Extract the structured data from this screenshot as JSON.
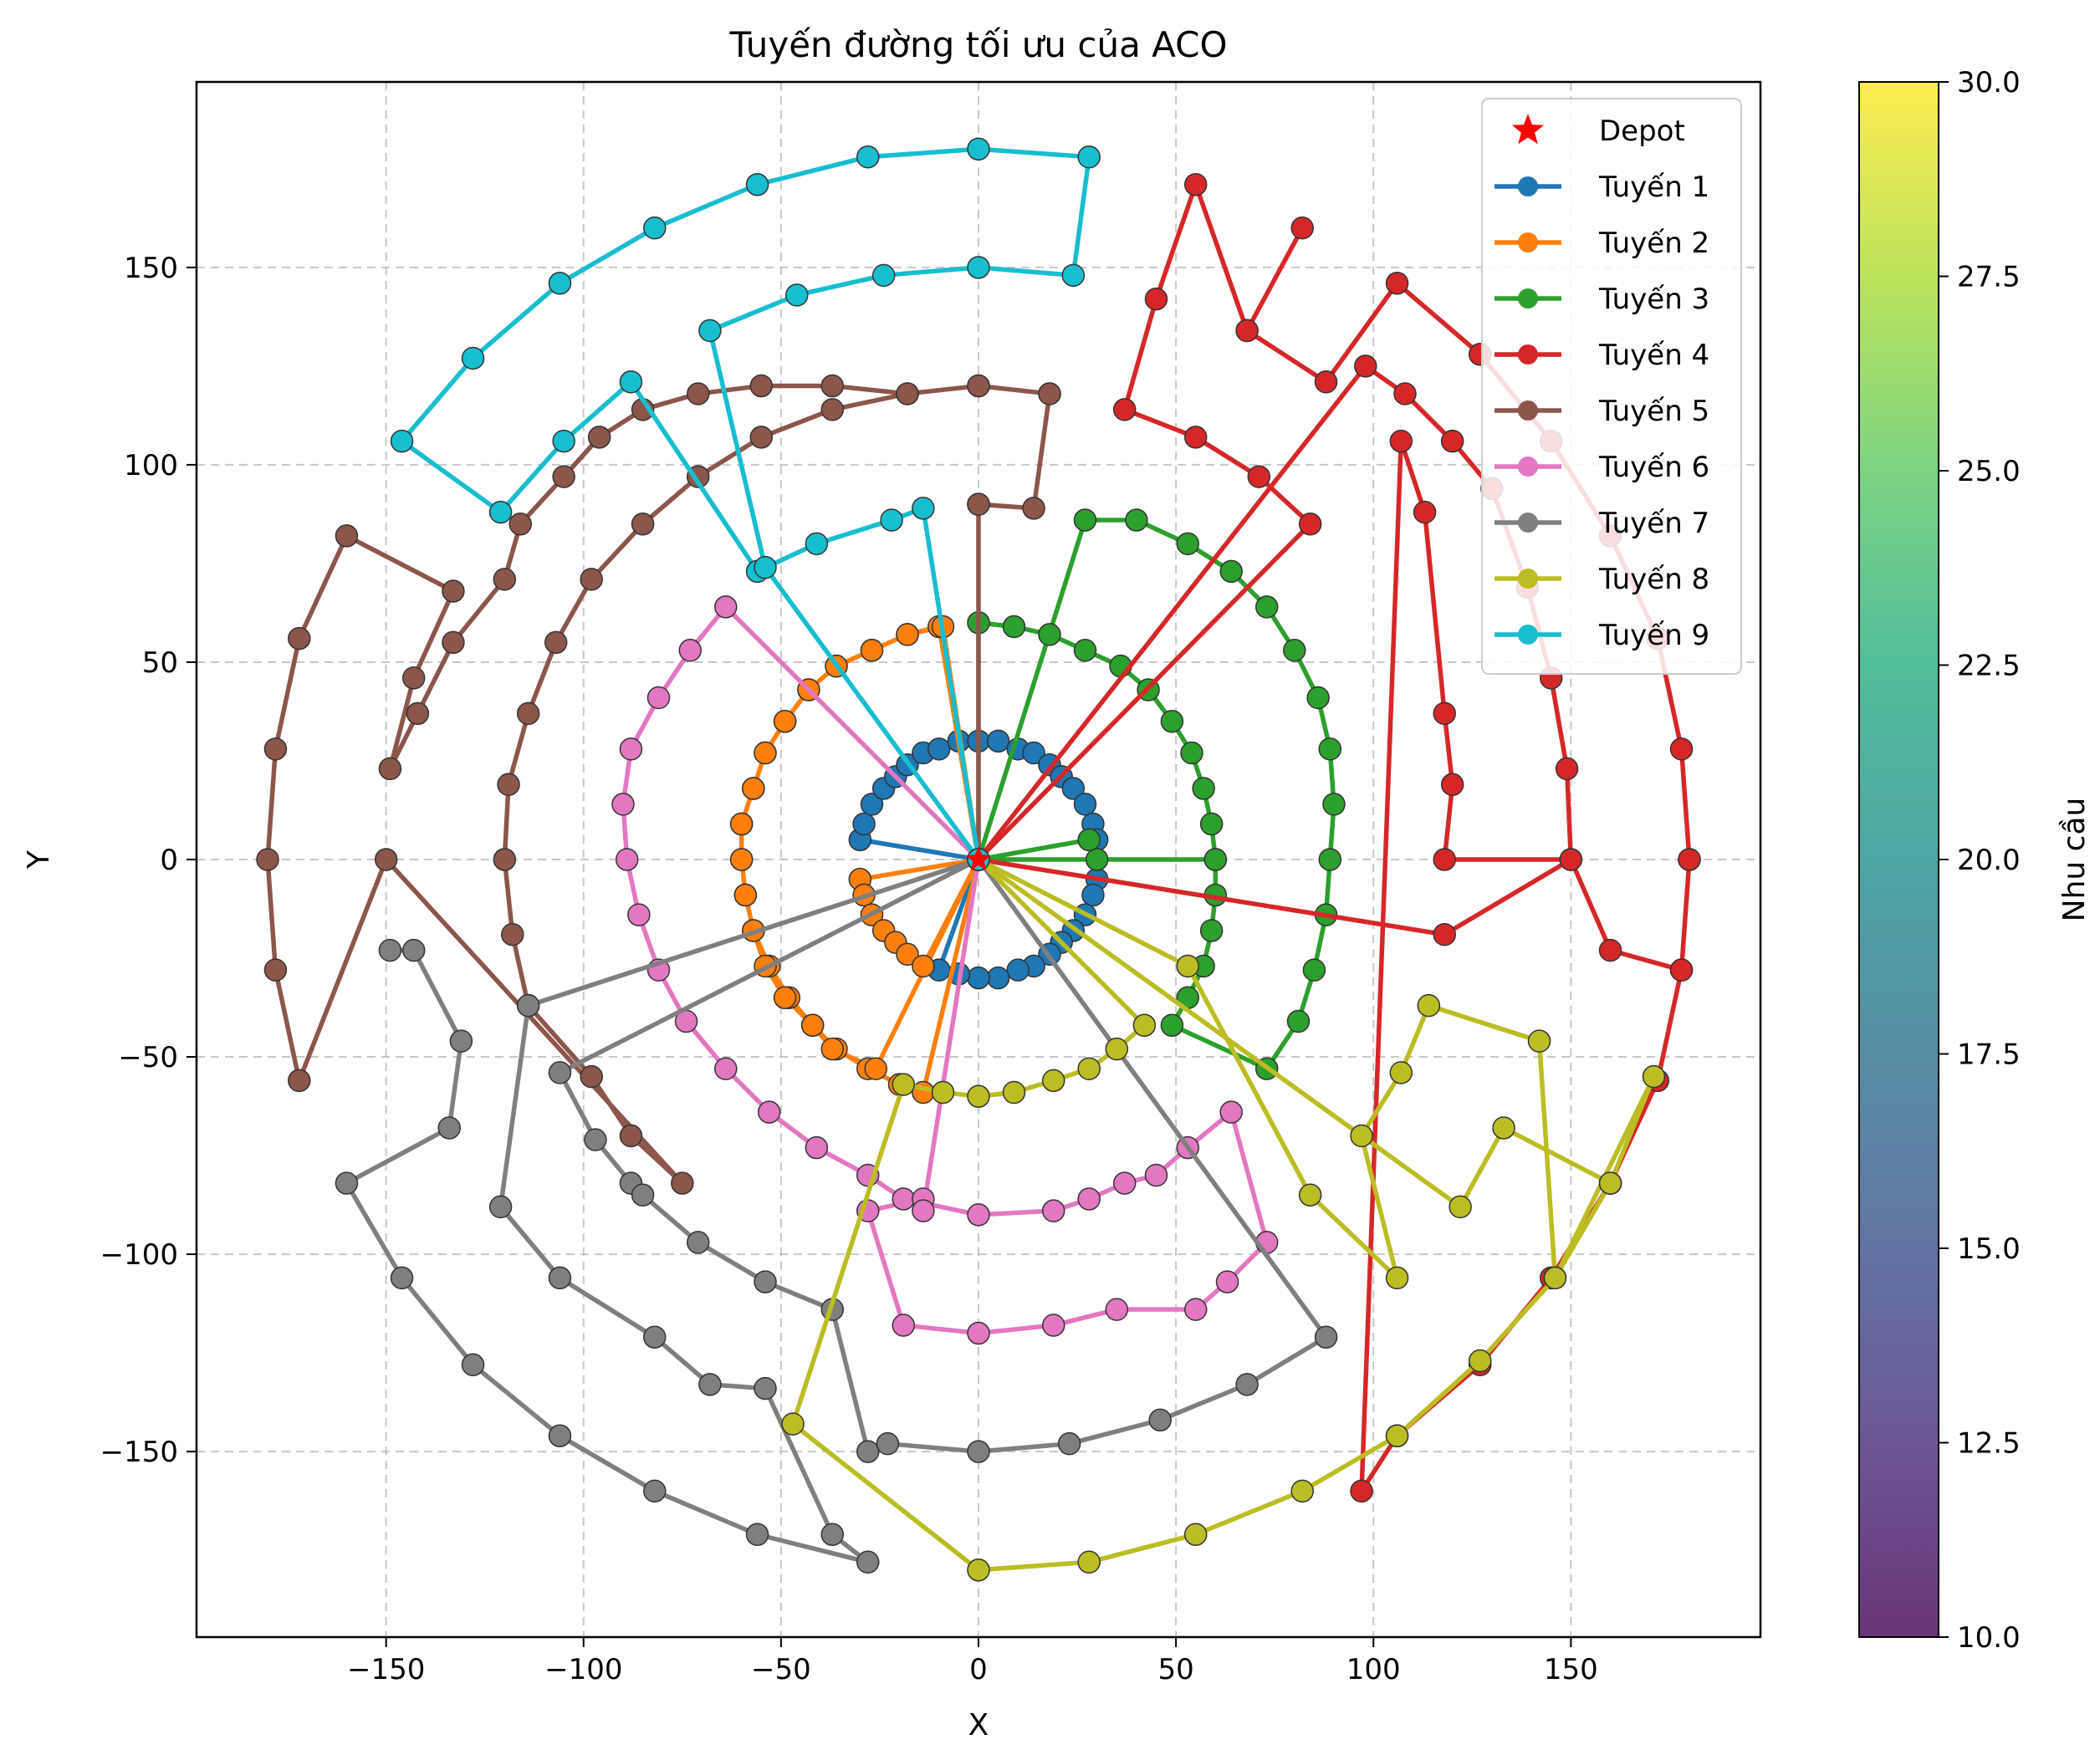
{
  "chart_data": {
    "type": "scatter",
    "title": "Tuyến đường tối ưu của ACO",
    "xlabel": "X",
    "ylabel": "Y",
    "xlim": [
      -198,
      198
    ],
    "ylim": [
      -197,
      197
    ],
    "xticks": [
      -150,
      -100,
      -50,
      0,
      50,
      100,
      150
    ],
    "yticks": [
      -150,
      -100,
      -50,
      0,
      50,
      100,
      150
    ],
    "xtick_labels": [
      "−150",
      "−100",
      "−50",
      "0",
      "50",
      "100",
      "150"
    ],
    "ytick_labels": [
      "−150",
      "−100",
      "−50",
      "0",
      "50",
      "100",
      "150"
    ],
    "grid": true,
    "legend_position": "upper right",
    "depot": {
      "label": "Depot",
      "x": 0,
      "y": 0,
      "color": "#ff0000"
    },
    "colorbar": {
      "label": "Nhu cầu",
      "min": 10.0,
      "max": 30.0,
      "ticks": [
        10.0,
        12.5,
        15.0,
        17.5,
        20.0,
        22.5,
        25.0,
        27.5,
        30.0
      ],
      "tick_labels": [
        "10.0",
        "12.5",
        "15.0",
        "17.5",
        "20.0",
        "22.5",
        "25.0",
        "27.5",
        "30.0"
      ],
      "colormap": "viridis"
    },
    "series": [
      {
        "name": "Tuyến 1",
        "color": "#1f77b4",
        "x": [
          0,
          -30,
          -29,
          -27,
          -24,
          -21,
          -18,
          -14,
          -10,
          -5,
          0,
          5,
          10,
          14,
          18,
          21,
          24,
          27,
          29,
          30,
          30,
          29,
          27,
          24,
          21,
          18,
          14,
          10,
          5,
          0,
          -5,
          -10,
          0
        ],
        "y": [
          0,
          5,
          9,
          14,
          18,
          21,
          24,
          27,
          28,
          30,
          30,
          30,
          28,
          27,
          24,
          21,
          18,
          14,
          9,
          5,
          -5,
          -9,
          -14,
          -18,
          -21,
          -24,
          -27,
          -28,
          -30,
          -30,
          -29,
          -28,
          0
        ]
      },
      {
        "name": "Tuyến 2",
        "color": "#ff7f0e",
        "x": [
          0,
          -10,
          -18,
          -27,
          -36,
          -43,
          -49,
          -54,
          -57,
          -60,
          -60,
          -59,
          -57,
          -53,
          -48,
          -42,
          -36,
          -28,
          -20,
          -14,
          0,
          -30,
          -29,
          -27,
          -24,
          -21,
          -18,
          -14,
          0,
          -26,
          -37,
          -42,
          -49,
          -54,
          -57,
          -59,
          -60,
          -60,
          -57,
          -54,
          -49,
          -43,
          -36,
          -27,
          -18,
          -9,
          0
        ],
        "y": [
          0,
          59,
          57,
          53,
          49,
          43,
          35,
          27,
          18,
          9,
          0,
          -9,
          -18,
          -27,
          -35,
          -42,
          -48,
          -53,
          -57,
          -59,
          0,
          -5,
          -9,
          -14,
          -18,
          -21,
          -24,
          -27,
          0,
          -53,
          -48,
          -42,
          -35,
          -27,
          -18,
          -9,
          0,
          9,
          18,
          27,
          35,
          43,
          49,
          53,
          57,
          59,
          0
        ]
      },
      {
        "name": "Tuyến 3",
        "color": "#2ca02c",
        "x": [
          0,
          0,
          9,
          18,
          27,
          36,
          43,
          49,
          54,
          57,
          59,
          60,
          0,
          30,
          28,
          0,
          60,
          60,
          59,
          57,
          53,
          49,
          73,
          81,
          85,
          88,
          89,
          90,
          89,
          86,
          80,
          73,
          64,
          53,
          40,
          27,
          0
        ],
        "y": [
          0,
          60,
          59,
          57,
          53,
          49,
          43,
          35,
          27,
          18,
          9,
          0,
          0,
          0,
          5,
          0,
          0,
          -9,
          -18,
          -27,
          -35,
          -42,
          -53,
          -41,
          -28,
          -14,
          0,
          14,
          28,
          41,
          53,
          64,
          73,
          80,
          86,
          86,
          0
        ]
      },
      {
        "name": "Tuyến 4",
        "color": "#d62728",
        "x": [
          0,
          84,
          71,
          55,
          37,
          45,
          55,
          68,
          82,
          68,
          88,
          106,
          127,
          145,
          160,
          172,
          178,
          180,
          178,
          172,
          160,
          145,
          127,
          106,
          97,
          107,
          113,
          118,
          120,
          118,
          150,
          149,
          145,
          139,
          130,
          120,
          108,
          98,
          0,
          118,
          150,
          160,
          178,
          180
        ],
        "y": [
          0,
          85,
          97,
          107,
          114,
          142,
          171,
          134,
          160,
          134,
          121,
          146,
          128,
          106,
          82,
          56,
          28,
          0,
          -28,
          -56,
          -82,
          -106,
          -128,
          -146,
          -160,
          106,
          88,
          37,
          19,
          0,
          0,
          23,
          46,
          69,
          94,
          106,
          118,
          125,
          0,
          -19,
          0,
          -23,
          -28,
          0
        ]
      },
      {
        "name": "Tuyến 5",
        "color": "#8c564b",
        "x": [
          0,
          0,
          0,
          14,
          18,
          0,
          -18,
          -37,
          -55,
          -71,
          -85,
          -98,
          -107,
          -114,
          -119,
          -120,
          -118,
          -114,
          -98,
          -88,
          -75,
          -150,
          -172,
          -178,
          -180,
          -178,
          -172,
          -160,
          -133,
          -143,
          -149,
          -142,
          -133,
          -120,
          -116,
          -105,
          -96,
          -85,
          -71,
          -55,
          -37,
          -18,
          0,
          18
        ],
        "y": [
          0,
          90,
          90,
          89,
          118,
          120,
          118,
          114,
          107,
          97,
          85,
          71,
          55,
          37,
          19,
          0,
          -19,
          -37,
          -55,
          -70,
          -82,
          0,
          -56,
          -28,
          0,
          28,
          56,
          82,
          68,
          46,
          23,
          37,
          55,
          71,
          85,
          97,
          107,
          114,
          118,
          120,
          120,
          118,
          120,
          118
        ]
      },
      {
        "name": "Tuyến 6",
        "color": "#e377c2",
        "x": [
          0,
          -64,
          -73,
          -81,
          -88,
          -90,
          -89,
          -86,
          -81,
          -74,
          -64,
          -53,
          -41,
          -28,
          -19,
          0,
          19,
          28,
          37,
          45,
          53,
          64,
          73,
          63,
          55,
          35,
          19,
          0,
          -19,
          -28,
          -14,
          -14,
          0
        ],
        "y": [
          0,
          64,
          53,
          41,
          28,
          14,
          0,
          -14,
          -28,
          -41,
          -53,
          -64,
          -73,
          -80,
          -86,
          -90,
          -89,
          -86,
          -82,
          -80,
          -73,
          -64,
          -97,
          -107,
          -114,
          -114,
          -118,
          -120,
          -118,
          -89,
          -86,
          -89,
          0
        ]
      },
      {
        "name": "Tuyến 7",
        "color": "#7f7f7f",
        "x": [
          0,
          -106,
          -97,
          -88,
          -85,
          -71,
          -54,
          -37,
          -28,
          -23,
          0,
          23,
          46,
          68,
          88,
          0,
          -114,
          -121,
          -106,
          -82,
          -68,
          -54,
          -37,
          -28,
          -56,
          -82,
          -106,
          -128,
          -146,
          -160,
          -134,
          -131,
          -143,
          -149
        ],
        "y": [
          0,
          -54,
          -71,
          -82,
          -85,
          -97,
          -107,
          -114,
          -150,
          -148,
          -150,
          -148,
          -142,
          -133,
          -121,
          0,
          -37,
          -88,
          -106,
          -121,
          -133,
          -134,
          -171,
          -178,
          -171,
          -160,
          -146,
          -128,
          -106,
          -82,
          -68,
          -46,
          -23,
          -23
        ]
      },
      {
        "name": "Tuyến 8",
        "color": "#bcbd22",
        "x": [
          0,
          42,
          35,
          28,
          19,
          9,
          0,
          -9,
          -19,
          -47,
          0,
          28,
          55,
          82,
          106,
          127,
          146,
          160,
          171,
          146,
          142,
          114,
          107,
          97,
          106,
          84,
          53,
          0,
          122,
          133,
          160
        ],
        "y": [
          0,
          -42,
          -48,
          -53,
          -56,
          -59,
          -60,
          -59,
          -57,
          -143,
          -180,
          -178,
          -171,
          -160,
          -146,
          -127,
          -106,
          -82,
          -55,
          -106,
          -46,
          -37,
          -54,
          -70,
          -106,
          -85,
          -27,
          0,
          -88,
          -68,
          -82
        ]
      },
      {
        "name": "Tuyến 9",
        "color": "#17becf",
        "x": [
          0,
          -14,
          -22,
          -41,
          -56,
          -88,
          -105,
          -121,
          -146,
          -128,
          -106,
          -82,
          -56,
          -28,
          0,
          28,
          24,
          0,
          -24,
          -46,
          -68,
          -54,
          0
        ],
        "y": [
          0,
          89,
          86,
          80,
          73,
          121,
          106,
          88,
          106,
          127,
          146,
          160,
          171,
          178,
          180,
          178,
          148,
          150,
          148,
          143,
          134,
          74,
          0
        ]
      }
    ]
  }
}
